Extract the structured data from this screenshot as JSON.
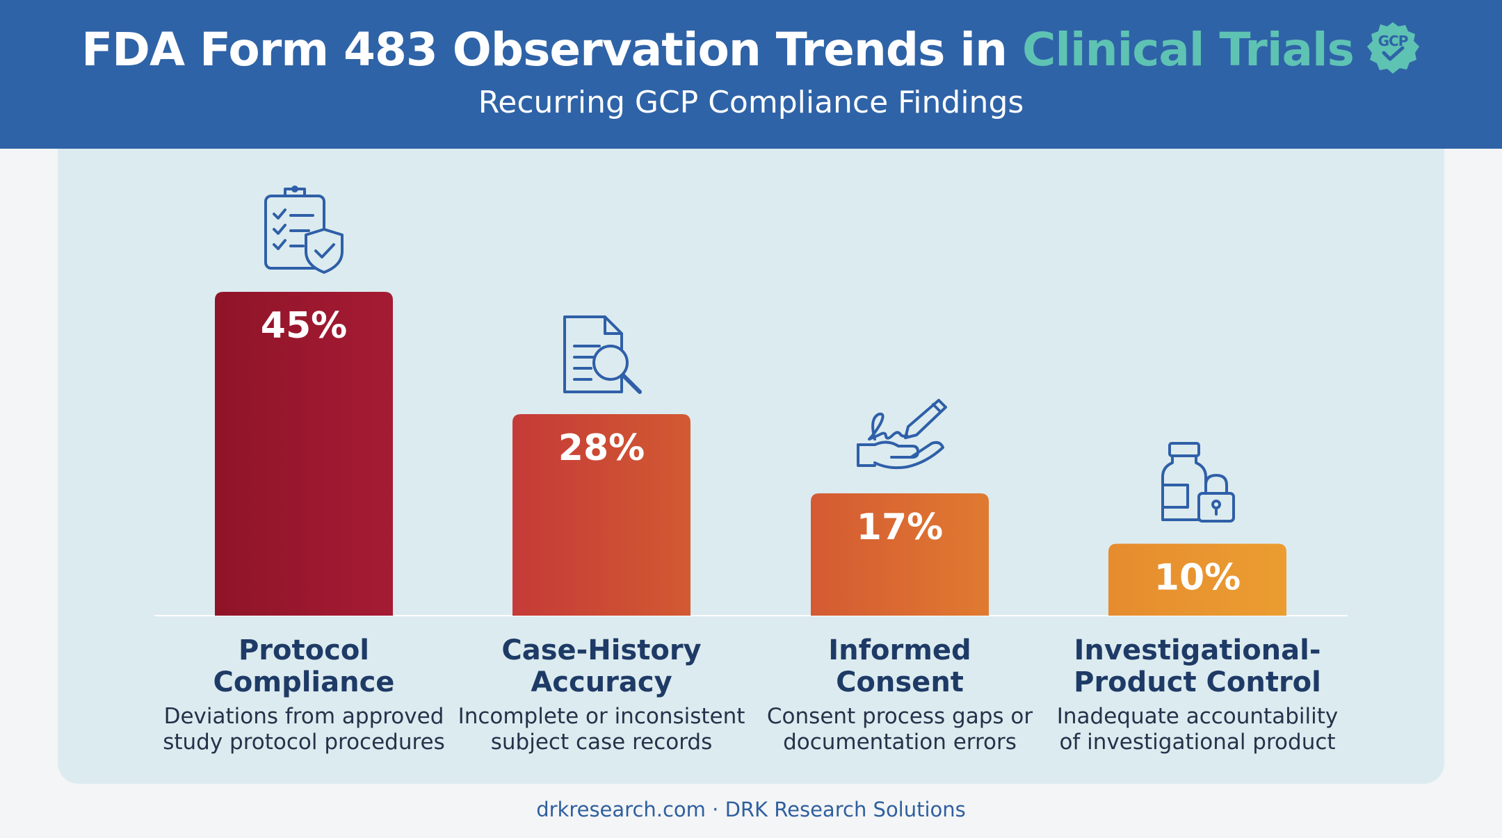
{
  "header": {
    "title_main": "FDA Form 483 Observation Trends in ",
    "title_accent": "Clinical Trials",
    "badge_text": "GCP",
    "subtitle": "Recurring GCP Compliance Findings"
  },
  "footer": {
    "text": "drkresearch.com · DRK Research Solutions"
  },
  "colors": {
    "header_bg": "#2f63a7",
    "accent": "#5fc3b4",
    "icon_stroke": "#2f5fa8",
    "bar_1": "#9c1830",
    "bar_2": "#cc4535",
    "bar_3": "#d86234",
    "bar_4": "#e8962f"
  },
  "chart_data": {
    "type": "bar",
    "categories": [
      "Protocol Compliance",
      "Case-History Accuracy",
      "Informed Consent",
      "Investigational-Product Control"
    ],
    "values": [
      45,
      28,
      17,
      10
    ],
    "value_labels": [
      "45%",
      "28%",
      "17%",
      "10%"
    ],
    "unit": "%",
    "title": "FDA Form 483 Observation Trends in Clinical Trials",
    "subtitle": "Recurring GCP Compliance Findings",
    "xlabel": "",
    "ylabel": "",
    "ylim": [
      0,
      45
    ],
    "grid": false,
    "legend": "none",
    "category_titles": [
      [
        "Protocol",
        "Compliance"
      ],
      [
        "Case-History",
        "Accuracy"
      ],
      [
        "Informed",
        "Consent"
      ],
      [
        "Investigational-",
        "Product Control"
      ]
    ],
    "descriptions": [
      [
        "Deviations from approved",
        "study protocol procedures"
      ],
      [
        "Incomplete or inconsistent",
        "subject case records"
      ],
      [
        "Consent process gaps or",
        "documentation errors"
      ],
      [
        "Inadequate accountability",
        "of investigational product"
      ]
    ],
    "icons": [
      "clipboard-shield-icon",
      "document-search-icon",
      "signature-hand-icon",
      "vial-lock-icon"
    ]
  }
}
